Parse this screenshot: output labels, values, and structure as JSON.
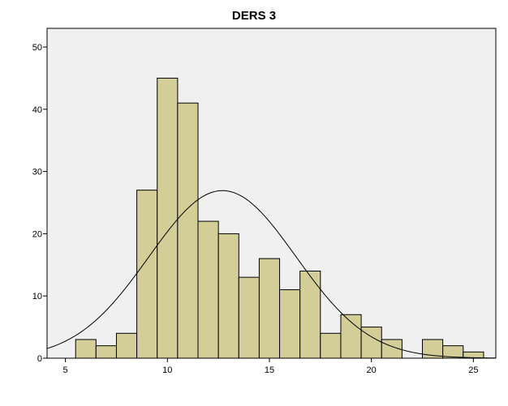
{
  "chart_data": {
    "type": "bar",
    "subtype": "histogram",
    "title": "DERS 3",
    "xlabel": "",
    "ylabel": "",
    "xlim": [
      4.1,
      26.1
    ],
    "ylim": [
      0,
      53
    ],
    "x_ticks": [
      5,
      10,
      15,
      20,
      25
    ],
    "y_ticks": [
      0,
      10,
      20,
      30,
      40,
      50
    ],
    "bin_width": 1,
    "bins": [
      {
        "start": 5.5,
        "end": 6.5,
        "count": 3
      },
      {
        "start": 6.5,
        "end": 7.5,
        "count": 2
      },
      {
        "start": 7.5,
        "end": 8.5,
        "count": 4
      },
      {
        "start": 8.5,
        "end": 9.5,
        "count": 27
      },
      {
        "start": 9.5,
        "end": 10.5,
        "count": 45
      },
      {
        "start": 10.5,
        "end": 11.5,
        "count": 41
      },
      {
        "start": 11.5,
        "end": 12.5,
        "count": 22
      },
      {
        "start": 12.5,
        "end": 13.5,
        "count": 20
      },
      {
        "start": 13.5,
        "end": 14.5,
        "count": 13
      },
      {
        "start": 14.5,
        "end": 15.5,
        "count": 16
      },
      {
        "start": 15.5,
        "end": 16.5,
        "count": 11
      },
      {
        "start": 16.5,
        "end": 17.5,
        "count": 14
      },
      {
        "start": 17.5,
        "end": 18.5,
        "count": 4
      },
      {
        "start": 18.5,
        "end": 19.5,
        "count": 7
      },
      {
        "start": 19.5,
        "end": 20.5,
        "count": 5
      },
      {
        "start": 20.5,
        "end": 21.5,
        "count": 3
      },
      {
        "start": 22.5,
        "end": 23.5,
        "count": 3
      },
      {
        "start": 23.5,
        "end": 24.5,
        "count": 2
      },
      {
        "start": 24.5,
        "end": 25.5,
        "count": 1
      }
    ],
    "normal_curve": {
      "mean": 12.7,
      "sd": 3.6,
      "n": 243
    },
    "grid": false,
    "colors": {
      "bar_fill": "#d3cd98",
      "bar_stroke": "#000000",
      "plot_background": "#f0f0f0",
      "curve": "#000000"
    }
  }
}
